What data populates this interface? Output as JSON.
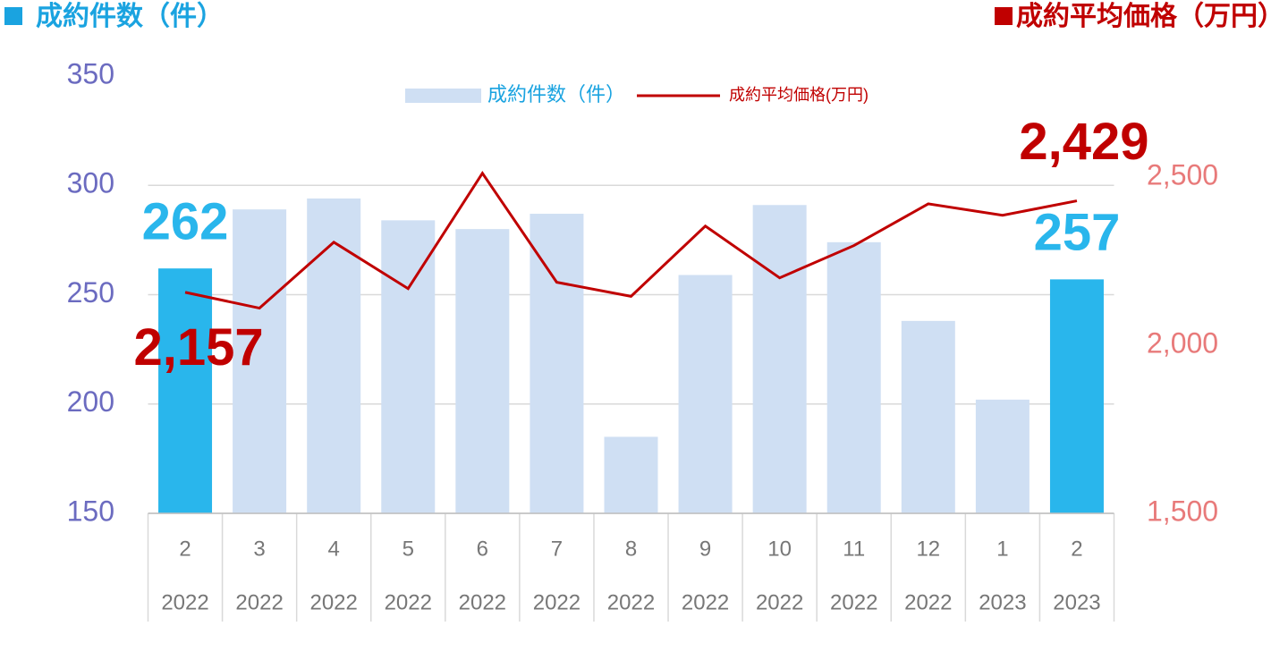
{
  "chart_data": {
    "type": "bar_line",
    "y_axis_label": "成約件数（件）",
    "y2_axis_label": "成約平均価格（万円）",
    "y_axis_color": "#1aa3e0",
    "y2_axis_color": "#c00000",
    "categories": [
      [
        "2",
        "2022"
      ],
      [
        "3",
        "2022"
      ],
      [
        "4",
        "2022"
      ],
      [
        "5",
        "2022"
      ],
      [
        "6",
        "2022"
      ],
      [
        "7",
        "2022"
      ],
      [
        "8",
        "2022"
      ],
      [
        "9",
        "2022"
      ],
      [
        "10",
        "2022"
      ],
      [
        "11",
        "2022"
      ],
      [
        "12",
        "2022"
      ],
      [
        "1",
        "2023"
      ],
      [
        "2",
        "2023"
      ]
    ],
    "ylim": [
      150,
      350
    ],
    "yticks": [
      150,
      200,
      250,
      300,
      350
    ],
    "y2lim": [
      1500,
      2800
    ],
    "y2ticks": [
      {
        "value": 1500,
        "label": "1,500"
      },
      {
        "value": 2000,
        "label": "2,000"
      },
      {
        "value": 2500,
        "label": "2,500"
      }
    ],
    "grid": true,
    "legend": "top",
    "series": [
      {
        "name": "成約件数（件）",
        "type": "bar",
        "color": "#cfdff3",
        "colors": [
          "#29b6ec",
          "#cfdff3",
          "#cfdff3",
          "#cfdff3",
          "#cfdff3",
          "#cfdff3",
          "#cfdff3",
          "#cfdff3",
          "#cfdff3",
          "#cfdff3",
          "#cfdff3",
          "#cfdff3",
          "#29b6ec"
        ],
        "values": [
          262,
          289,
          294,
          284,
          280,
          287,
          185,
          259,
          291,
          274,
          238,
          202,
          257
        ],
        "value_labels": [
          "262",
          null,
          null,
          null,
          null,
          null,
          null,
          null,
          null,
          null,
          null,
          null,
          "257"
        ]
      },
      {
        "name": "成約平均価格(万円)",
        "type": "line",
        "axis": "y2",
        "color": "#c00000",
        "values": [
          2157,
          2110,
          2306,
          2168,
          2511,
          2187,
          2145,
          2354,
          2200,
          2296,
          2420,
          2386,
          2429
        ],
        "value_labels": [
          "2,157",
          null,
          null,
          null,
          null,
          null,
          null,
          null,
          null,
          null,
          null,
          null,
          "2,429"
        ]
      }
    ]
  }
}
